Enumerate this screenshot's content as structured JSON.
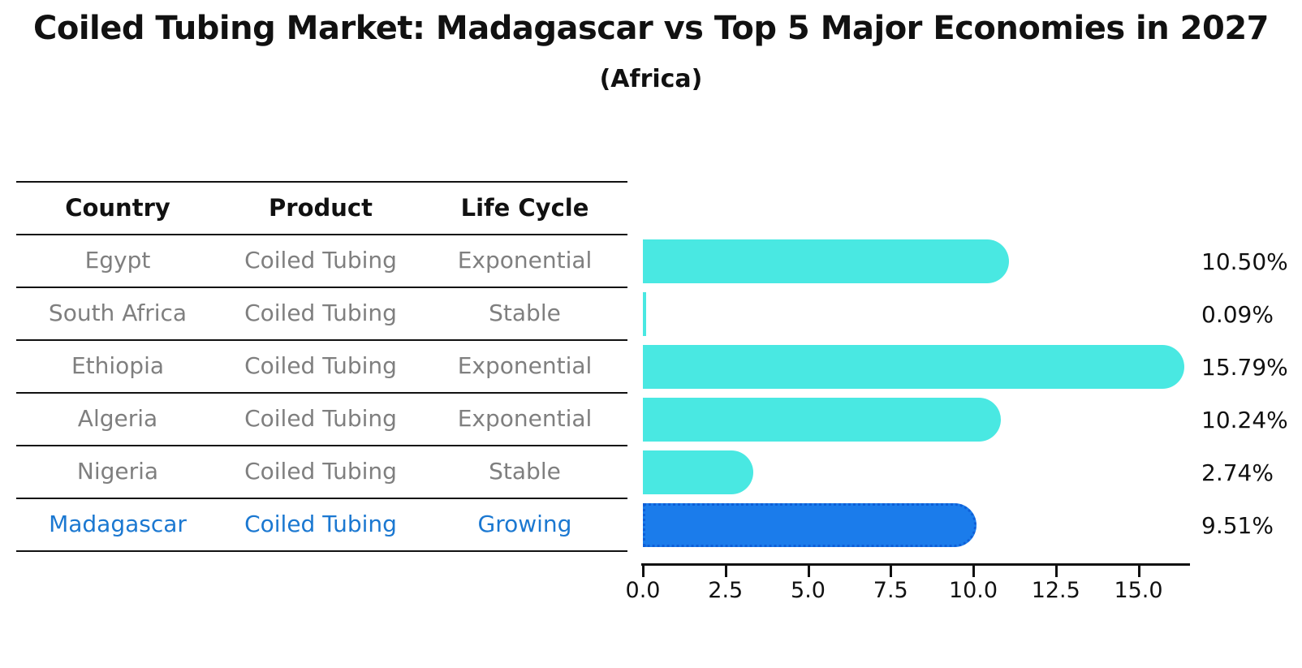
{
  "chart_data": {
    "type": "bar",
    "orientation": "horizontal",
    "title": "Coiled Tubing Market: Madagascar vs Top 5 Major Economies in 2027",
    "subtitle": "(Africa)",
    "categories": [
      "Egypt",
      "South Africa",
      "Ethiopia",
      "Algeria",
      "Nigeria",
      "Madagascar"
    ],
    "values": [
      10.5,
      0.09,
      15.79,
      10.24,
      2.74,
      9.51
    ],
    "value_labels": [
      "10.50%",
      "0.09%",
      "15.79%",
      "10.24%",
      "2.74%",
      "9.51%"
    ],
    "highlight_index": 5,
    "xlim": [
      0,
      16.4
    ],
    "x_ticks": [
      0.0,
      2.5,
      5.0,
      7.5,
      10.0,
      12.5,
      15.0
    ],
    "x_tick_labels": [
      "0.0",
      "2.5",
      "5.0",
      "7.5",
      "10.0",
      "12.5",
      "15.0"
    ],
    "grid": false,
    "legend": "none",
    "bar_color": "#49e8e2",
    "highlight_bar_color": "#1b7ceb",
    "highlight_text_color": "#1b78d1",
    "row_text_color": "#7f7f7f",
    "table": {
      "headers": [
        "Country",
        "Product",
        "Life Cycle"
      ],
      "rows": [
        [
          "Egypt",
          "Coiled Tubing",
          "Exponential"
        ],
        [
          "South Africa",
          "Coiled Tubing",
          "Stable"
        ],
        [
          "Ethiopia",
          "Coiled Tubing",
          "Exponential"
        ],
        [
          "Algeria",
          "Coiled Tubing",
          "Exponential"
        ],
        [
          "Nigeria",
          "Coiled Tubing",
          "Stable"
        ],
        [
          "Madagascar",
          "Coiled Tubing",
          "Growing"
        ]
      ]
    }
  }
}
